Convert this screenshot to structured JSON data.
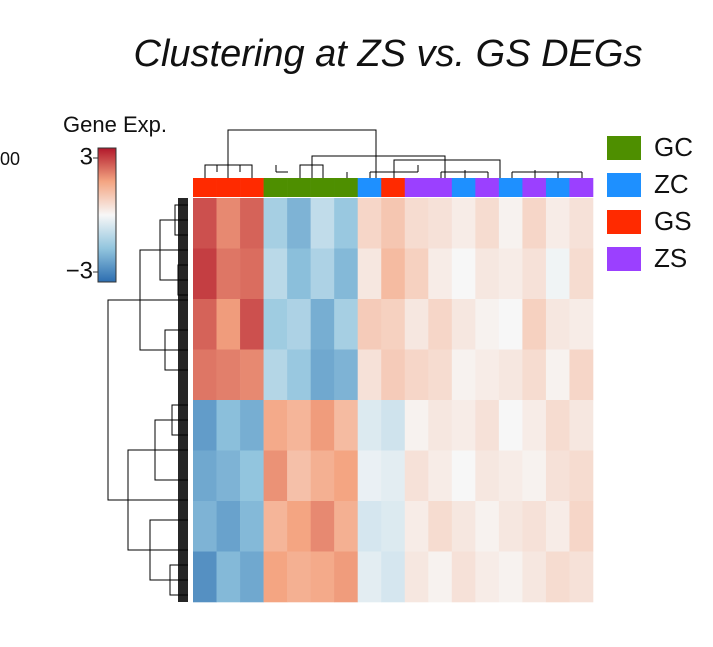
{
  "chart_data": {
    "type": "heatmap",
    "title": "Clustering at ZS vs. GS DEGs",
    "side_text": "00",
    "colorbar_title": "Gene Exp.",
    "colorbar_lim": [
      -3,
      3
    ],
    "colorbar_ticks": [
      3,
      {
        "value": -3,
        "label": "−3"
      }
    ],
    "colorbar_colors": [
      "#2c6db0",
      "#92c5de",
      "#f7f7f7",
      "#f4a582",
      "#b2182b"
    ],
    "legend": [
      {
        "name": "GC",
        "color": "#4e8f00"
      },
      {
        "name": "ZC",
        "color": "#1e90ff"
      },
      {
        "name": "GS",
        "color": "#ff2a00"
      },
      {
        "name": "ZS",
        "color": "#9b40ff"
      }
    ],
    "column_groups": [
      "GS",
      "GS",
      "GS",
      "GC",
      "GC",
      "GC",
      "GC",
      "ZC",
      "GS",
      "ZS",
      "ZS",
      "ZC",
      "ZS",
      "ZC",
      "ZS",
      "ZC",
      "ZS"
    ],
    "values": [
      [
        2.4,
        1.8,
        2.2,
        -1.2,
        -1.8,
        -0.8,
        -1.4,
        0.6,
        0.9,
        0.5,
        0.4,
        0.2,
        0.5,
        0.1,
        0.6,
        0.2,
        0.4
      ],
      [
        2.6,
        2.0,
        2.1,
        -0.9,
        -1.6,
        -1.1,
        -1.7,
        0.3,
        1.1,
        0.7,
        0.2,
        0.0,
        0.3,
        0.2,
        0.4,
        -0.1,
        0.5
      ],
      [
        2.2,
        1.6,
        2.4,
        -1.3,
        -1.1,
        -1.9,
        -1.2,
        0.8,
        0.7,
        0.3,
        0.6,
        0.3,
        0.1,
        0.0,
        0.7,
        0.3,
        0.2
      ],
      [
        2.0,
        1.9,
        1.8,
        -1.0,
        -1.4,
        -2.0,
        -1.8,
        0.4,
        0.8,
        0.6,
        0.5,
        0.1,
        0.2,
        0.3,
        0.5,
        0.1,
        0.6
      ],
      [
        -2.2,
        -1.6,
        -1.9,
        1.4,
        1.2,
        1.6,
        1.1,
        -0.4,
        -0.6,
        0.1,
        0.3,
        0.2,
        0.4,
        0.0,
        0.2,
        0.5,
        0.3
      ],
      [
        -2.0,
        -1.8,
        -1.5,
        1.7,
        1.0,
        1.3,
        1.5,
        -0.2,
        -0.3,
        0.4,
        0.2,
        0.0,
        0.3,
        0.2,
        0.1,
        0.4,
        0.5
      ],
      [
        -1.8,
        -2.1,
        -1.7,
        1.2,
        1.5,
        1.8,
        1.3,
        -0.5,
        -0.4,
        0.2,
        0.5,
        0.3,
        0.1,
        0.3,
        0.4,
        0.2,
        0.6
      ],
      [
        -2.4,
        -1.7,
        -2.0,
        1.5,
        1.3,
        1.4,
        1.6,
        -0.3,
        -0.5,
        0.3,
        0.1,
        0.4,
        0.2,
        0.1,
        0.3,
        0.5,
        0.4
      ]
    ]
  }
}
